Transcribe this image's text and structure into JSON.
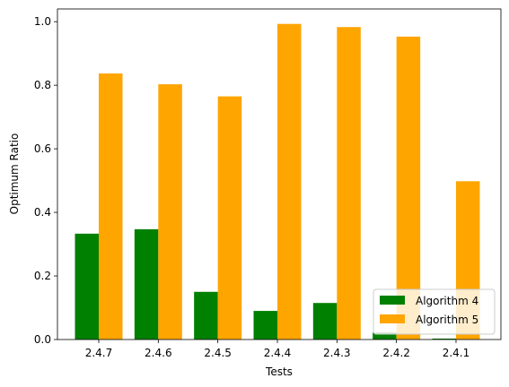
{
  "chart_data": {
    "type": "bar",
    "title": "",
    "xlabel": "Tests",
    "ylabel": "Optimum Ratio",
    "categories": [
      "2.4.7",
      "2.4.6",
      "2.4.5",
      "2.4.4",
      "2.4.3",
      "2.4.2",
      "2.4.1"
    ],
    "series": [
      {
        "name": "Algorithm 4",
        "color": "#008000",
        "values": [
          0.333,
          0.347,
          0.15,
          0.09,
          0.115,
          0.022,
          0.003
        ]
      },
      {
        "name": "Algorithm 5",
        "color": "#FFA500",
        "values": [
          0.837,
          0.803,
          0.765,
          0.993,
          0.983,
          0.953,
          0.498
        ]
      }
    ],
    "ylim": [
      0,
      1.04
    ],
    "yticks": [
      "0.0",
      "0.2",
      "0.4",
      "0.6",
      "0.8",
      "1.0"
    ],
    "legend_position": "lower-right",
    "grid": false
  }
}
